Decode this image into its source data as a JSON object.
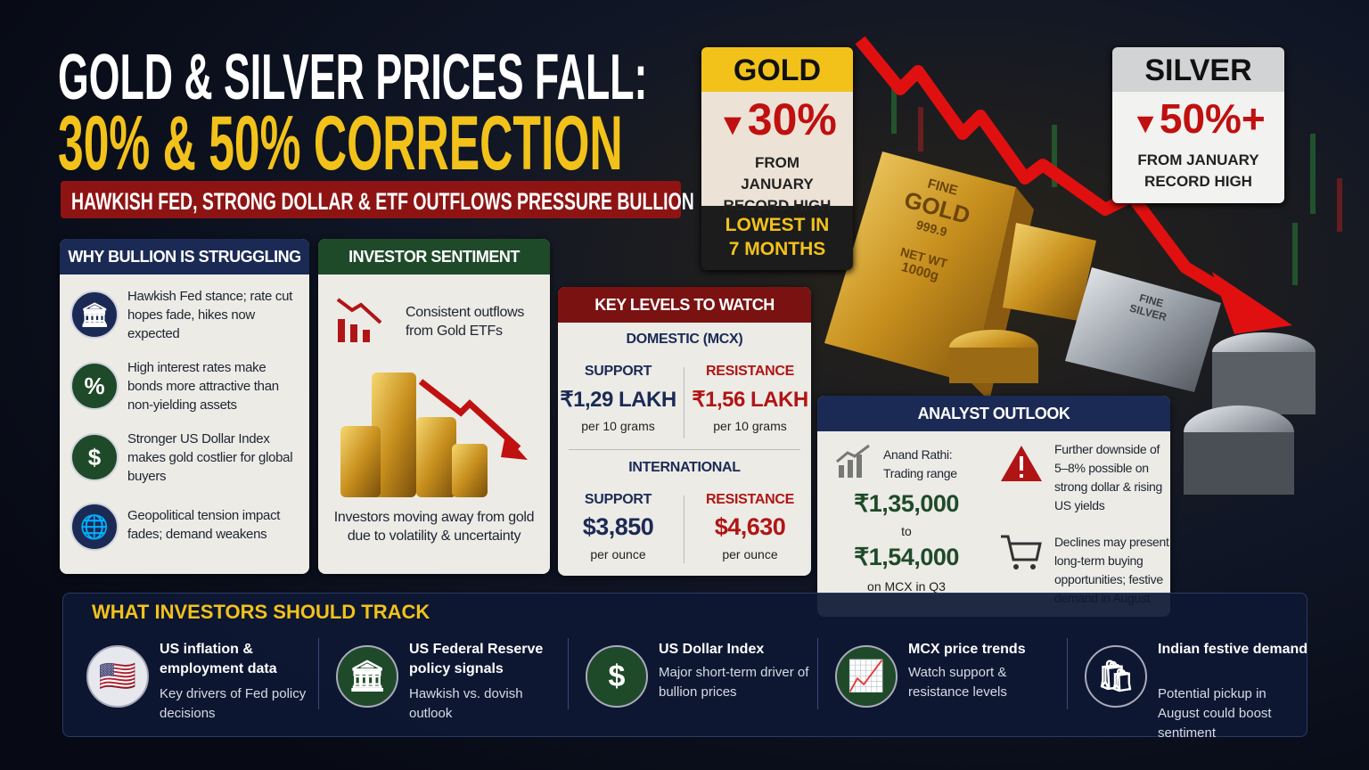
{
  "header": {
    "title_line1": "GOLD & SILVER PRICES FALL:",
    "title_line2": "30% & 50% CORRECTION",
    "subtitle": "HAWKISH FED, STRONG DOLLAR & ETF OUTFLOWS PRESSURE BULLION"
  },
  "gold_box": {
    "label": "GOLD",
    "change": "30%",
    "caption": "FROM JANUARY RECORD HIGH",
    "note": "LOWEST IN 7 MONTHS"
  },
  "silver_box": {
    "label": "SILVER",
    "change": "50%+",
    "caption": "FROM JANUARY RECORD HIGH"
  },
  "gold_bar": {
    "line1": "FINE",
    "line2": "GOLD",
    "line3": "999.9",
    "line4": "NET WT",
    "line5": "1000g"
  },
  "silver_bar": {
    "line1": "FINE",
    "line2": "SILVER"
  },
  "why_panel": {
    "title": "WHY BULLION IS STRUGGLING",
    "items": [
      "Hawkish Fed stance; rate cut hopes fade, hikes now expected",
      "High interest rates make bonds more attractive than non-yielding assets",
      "Stronger US Dollar Index makes gold costlier for global buyers",
      "Geopolitical tension impact fades; demand weakens"
    ]
  },
  "sentiment_panel": {
    "title": "INVESTOR SENTIMENT",
    "lead": "Consistent outflows from Gold ETFs",
    "caption": "Investors moving away from gold due to volatility & uncertainty"
  },
  "key_levels": {
    "title": "KEY LEVELS TO WATCH",
    "domestic": {
      "heading": "DOMESTIC (MCX)",
      "support_label": "SUPPORT",
      "support": "₹1,29 LAKH",
      "support_unit": "per 10 grams",
      "resistance_label": "RESISTANCE",
      "resistance": "₹1,56 LAKH",
      "resistance_unit": "per 10 grams"
    },
    "international": {
      "heading": "INTERNATIONAL",
      "support_label": "SUPPORT",
      "support": "$3,850",
      "support_unit": "per ounce",
      "resistance_label": "RESISTANCE",
      "resistance": "$4,630",
      "resistance_unit": "per ounce"
    }
  },
  "analyst_outlook": {
    "title": "ANALYST OUTLOOK",
    "source": "Anand Rathi: Trading range",
    "low": "₹1,35,000",
    "connector": "to",
    "high": "₹1,54,000",
    "scope": "on MCX in Q3",
    "points": [
      "Further downside of 5–8% possible on strong dollar & rising US yields",
      "Declines may present long-term buying opportunities; festive demand in August"
    ]
  },
  "track": {
    "title": "WHAT INVESTORS SHOULD TRACK",
    "items": [
      {
        "title": "US inflation & employment data",
        "desc": "Key drivers of Fed policy decisions"
      },
      {
        "title": "US Federal Reserve policy signals",
        "desc": "Hawkish vs. dovish outlook"
      },
      {
        "title": "US Dollar Index",
        "desc": "Major short-term driver of bullion prices"
      },
      {
        "title": "MCX price trends",
        "desc": "Watch support & resistance levels"
      },
      {
        "title": "Indian festive demand",
        "desc": "Potential pickup in August could boost sentiment"
      }
    ]
  }
}
